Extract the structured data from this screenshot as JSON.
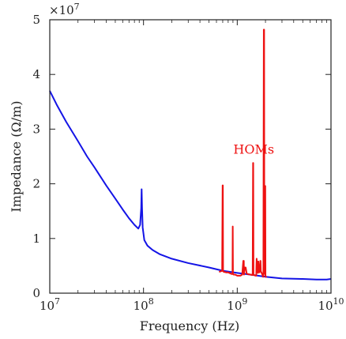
{
  "chart_data": {
    "type": "line",
    "title": "",
    "xlabel": "Frequency (Hz)",
    "ylabel": "Impedance (Ω/m)",
    "xscale": "log",
    "xlim": [
      10000000,
      10000000000
    ],
    "ylim": [
      0,
      50000000
    ],
    "y_multiplier_label": "×10",
    "y_multiplier_exp": "7",
    "grid": false,
    "legend": "none",
    "x_ticks": [
      {
        "value": 10000000,
        "base": "10",
        "exp": "7"
      },
      {
        "value": 100000000,
        "base": "10",
        "exp": "8"
      },
      {
        "value": 1000000000,
        "base": "10",
        "exp": "9"
      },
      {
        "value": 10000000000,
        "base": "10",
        "exp": "10"
      }
    ],
    "y_ticks": [
      {
        "value": 0,
        "label": "0"
      },
      {
        "value": 10000000,
        "label": "1"
      },
      {
        "value": 20000000,
        "label": "2"
      },
      {
        "value": 30000000,
        "label": "3"
      },
      {
        "value": 40000000,
        "label": "4"
      },
      {
        "value": 50000000,
        "label": "5"
      }
    ],
    "series": [
      {
        "color": "#1414e6",
        "x": [
          10000000,
          12000000,
          15000000,
          20000000,
          25000000,
          30000000,
          40000000,
          50000000,
          60000000,
          70000000,
          80000000,
          88000000,
          92000000,
          94500000,
          95500000,
          96500000,
          98000000,
          102000000,
          110000000,
          125000000,
          150000000,
          200000000,
          300000000,
          500000000,
          700000000,
          1000000000,
          1500000000,
          2000000000,
          3000000000,
          5000000000,
          7000000000,
          8000000000,
          9000000000,
          10000000000
        ],
        "y": [
          37000000,
          34300000,
          31300000,
          27800000,
          25000000,
          23000000,
          19700000,
          17300000,
          15300000,
          13700000,
          12500000,
          11800000,
          12500000,
          15500000,
          19000000,
          15500000,
          12000000,
          9700000,
          8700000,
          7900000,
          7100000,
          6300000,
          5500000,
          4700000,
          4100000,
          3700000,
          3300000,
          3000000,
          2700000,
          2600000,
          2500000,
          2500000,
          2500000,
          2600000
        ]
      },
      {
        "name": "HOMs",
        "color": "#ee1111",
        "x": [
          640000000,
          670000000,
          690000000,
          698000000,
          702000000,
          706000000,
          720000000,
          760000000,
          800000000,
          870000000,
          890000000,
          895000000,
          900000000,
          915000000,
          950000000,
          1000000000,
          1080000000,
          1130000000,
          1160000000,
          1175000000,
          1180000000,
          1200000000,
          1230000000,
          1260000000,
          1290000000,
          1380000000,
          1460000000,
          1475000000,
          1480000000,
          1490000000,
          1520000000,
          1560000000,
          1595000000,
          1600000000,
          1610000000,
          1630000000,
          1665000000,
          1670000000,
          1680000000,
          1700000000,
          1730000000,
          1765000000,
          1770000000,
          1785000000,
          1810000000,
          1840000000,
          1860000000,
          1880000000,
          1900000000,
          1920000000,
          1935000000,
          1945000000,
          1955000000,
          1975000000,
          1985000000,
          1990000000,
          2000000000,
          2020000000,
          2050000000
        ],
        "y": [
          3900000,
          4000000,
          4100000,
          19700000,
          19700000,
          4000000,
          3900000,
          3800000,
          3800000,
          3500000,
          3500000,
          12200000,
          3500000,
          3400000,
          3400000,
          3200000,
          3200000,
          3400000,
          5900000,
          5900000,
          3400000,
          4700000,
          4700000,
          3600000,
          3500000,
          3400000,
          3300000,
          23800000,
          23800000,
          3400000,
          3300000,
          3200000,
          3200000,
          4800000,
          6300000,
          4000000,
          3700000,
          5800000,
          5800000,
          4000000,
          3800000,
          5900000,
          5900000,
          4000000,
          3800000,
          3500000,
          3300000,
          3000000,
          3000000,
          48200000,
          48200000,
          5500000,
          5000000,
          3500000,
          3500000,
          19600000,
          3200000,
          3000000,
          2900000
        ]
      }
    ],
    "annotations": [
      {
        "text": "HOMs",
        "color": "#ee1111",
        "x": 1500000000,
        "y": 25500000
      }
    ]
  }
}
